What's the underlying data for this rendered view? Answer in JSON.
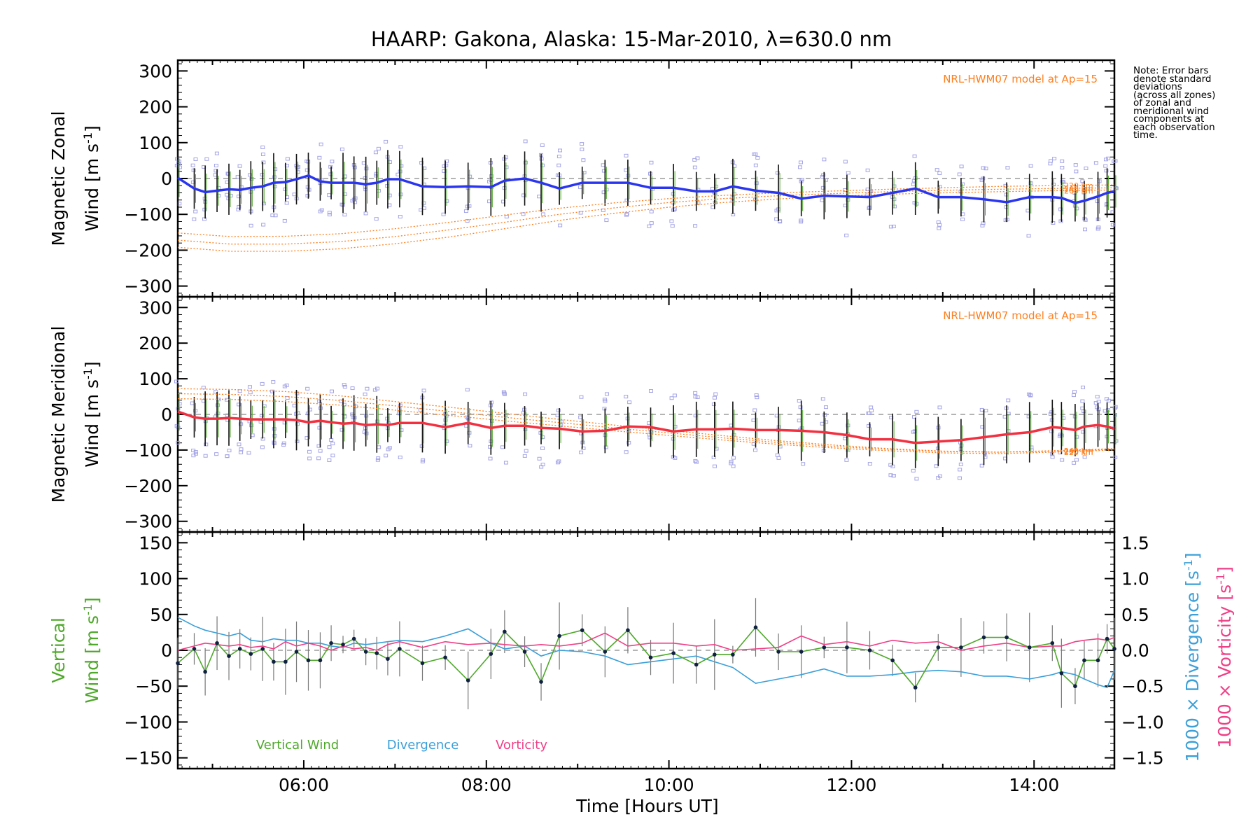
{
  "title": "HAARP: Gakona,  Alaska: 15-Mar-2010, λ=630.0 nm",
  "note_lines": [
    "Note: Error bars",
    "denote standard",
    "deviations",
    "(across all zones)",
    "of zonal and",
    "meridional wind",
    "components at",
    "each observation",
    "time."
  ],
  "xaxis": {
    "label": "Time [Hours UT]",
    "ticks": [
      6,
      8,
      10,
      12,
      14
    ],
    "tick_labels": [
      "06:00",
      "08:00",
      "10:00",
      "12:00",
      "14:00"
    ],
    "range": [
      4.62,
      14.88
    ]
  },
  "colors": {
    "zonal": "#2a35f0",
    "meridional": "#f23040",
    "model": "#ff7f1e",
    "vertical": "#4ea82a",
    "divergence": "#3b9fd8",
    "vorticity": "#ef3f86",
    "scatter": "#a4a4e6",
    "errorbar": "#101010",
    "zero_line": "#888888"
  },
  "chart_data": [
    {
      "type": "line",
      "panel": "zonal",
      "ylabel_line1": "Magnetic Zonal",
      "ylabel_line2": "Wind [m s",
      "ylabel_sup": "-1",
      "ylabel_end": "]",
      "ylim": [
        -330,
        330
      ],
      "yticks": [
        -300,
        -200,
        -100,
        0,
        100,
        200,
        300
      ],
      "ytick_labels": [
        "−300",
        "−200",
        "−100",
        "0",
        "100",
        "200",
        "300"
      ],
      "model_label": "NRL-HWM07 model at Ap=15",
      "model_altitudes": [
        "260 km",
        "240 km",
        "220 km"
      ],
      "series": [
        {
          "role": "zonal",
          "x": [
            4.62,
            4.8,
            4.92,
            5.05,
            5.18,
            5.3,
            5.42,
            5.55,
            5.67,
            5.8,
            5.92,
            6.05,
            6.18,
            6.3,
            6.43,
            6.55,
            6.68,
            6.8,
            6.92,
            7.05,
            7.3,
            7.55,
            7.8,
            8.05,
            8.2,
            8.42,
            8.6,
            8.8,
            9.05,
            9.3,
            9.55,
            9.8,
            10.05,
            10.3,
            10.5,
            10.7,
            10.95,
            11.2,
            11.45,
            11.7,
            11.95,
            12.2,
            12.45,
            12.7,
            12.95,
            13.2,
            13.45,
            13.7,
            13.95,
            14.2,
            14.3,
            14.45,
            14.55,
            14.7,
            14.8,
            14.88
          ],
          "y": [
            2,
            -28,
            -38,
            -34,
            -30,
            -32,
            -26,
            -22,
            -12,
            -10,
            -2,
            8,
            -8,
            -12,
            -12,
            -12,
            -16,
            -12,
            -2,
            -2,
            -22,
            -24,
            -22,
            -24,
            -6,
            0,
            -12,
            -28,
            -12,
            -12,
            -12,
            -26,
            -26,
            -36,
            -36,
            -22,
            -34,
            -40,
            -56,
            -48,
            -50,
            -52,
            -40,
            -28,
            -52,
            -52,
            -58,
            -66,
            -52,
            -52,
            -54,
            -68,
            -62,
            -50,
            -40,
            -36
          ]
        },
        {
          "role": "model",
          "x": [
            4.62,
            5.2,
            5.8,
            6.4,
            7.0,
            7.6,
            8.2,
            8.8,
            9.4,
            10.0,
            10.6,
            11.2,
            11.8,
            12.4,
            13.0,
            13.6,
            14.2,
            14.88
          ],
          "y": [
            -192,
            -203,
            -203,
            -196,
            -182,
            -163,
            -140,
            -117,
            -97,
            -80,
            -67,
            -57,
            -50,
            -44,
            -40,
            -37,
            -34,
            -32
          ]
        },
        {
          "role": "model",
          "x": [
            4.62,
            5.2,
            5.8,
            6.4,
            7.0,
            7.6,
            8.2,
            8.8,
            9.4,
            10.0,
            10.6,
            11.2,
            11.8,
            12.4,
            13.0,
            13.6,
            14.2,
            14.88
          ],
          "y": [
            -172,
            -183,
            -183,
            -176,
            -162,
            -143,
            -122,
            -100,
            -82,
            -67,
            -56,
            -48,
            -42,
            -37,
            -33,
            -30,
            -28,
            -26
          ]
        },
        {
          "role": "model",
          "x": [
            4.62,
            5.2,
            5.8,
            6.4,
            7.0,
            7.6,
            8.2,
            8.8,
            9.4,
            10.0,
            10.6,
            11.2,
            11.8,
            12.4,
            13.0,
            13.6,
            14.2,
            14.88
          ],
          "y": [
            -152,
            -162,
            -161,
            -154,
            -140,
            -122,
            -102,
            -83,
            -68,
            -56,
            -47,
            -40,
            -35,
            -30,
            -26,
            -22,
            -20,
            -18
          ]
        }
      ]
    },
    {
      "type": "line",
      "panel": "meridional",
      "ylabel_line1": "Magnetic Meridional",
      "ylabel_line2": "Wind [m s",
      "ylabel_sup": "-1",
      "ylabel_end": "]",
      "ylim": [
        -330,
        330
      ],
      "yticks": [
        -300,
        -200,
        -100,
        0,
        100,
        200,
        300
      ],
      "ytick_labels": [
        "−300",
        "−200",
        "−100",
        "0",
        "100",
        "200",
        "300"
      ],
      "model_label": "NRL-HWM07 model at Ap=15",
      "model_altitudes": [
        "260 km",
        "240 km",
        "220 km"
      ],
      "series": [
        {
          "role": "meridional",
          "x": [
            4.62,
            4.8,
            4.92,
            5.05,
            5.18,
            5.3,
            5.42,
            5.55,
            5.67,
            5.8,
            5.92,
            6.05,
            6.18,
            6.3,
            6.43,
            6.55,
            6.68,
            6.8,
            6.92,
            7.05,
            7.3,
            7.55,
            7.8,
            8.05,
            8.2,
            8.42,
            8.6,
            8.8,
            9.05,
            9.3,
            9.55,
            9.8,
            10.05,
            10.3,
            10.5,
            10.7,
            10.95,
            11.2,
            11.45,
            11.7,
            11.95,
            12.2,
            12.45,
            12.7,
            12.95,
            13.2,
            13.45,
            13.7,
            13.95,
            14.2,
            14.3,
            14.45,
            14.55,
            14.7,
            14.8,
            14.88
          ],
          "y": [
            8,
            -8,
            -12,
            -12,
            -10,
            -12,
            -14,
            -14,
            -14,
            -14,
            -16,
            -22,
            -18,
            -22,
            -26,
            -24,
            -30,
            -28,
            -30,
            -24,
            -24,
            -36,
            -24,
            -38,
            -32,
            -32,
            -38,
            -40,
            -48,
            -46,
            -34,
            -36,
            -48,
            -42,
            -42,
            -40,
            -44,
            -44,
            -46,
            -50,
            -58,
            -70,
            -70,
            -80,
            -76,
            -72,
            -64,
            -56,
            -50,
            -36,
            -38,
            -44,
            -34,
            -30,
            -34,
            -40
          ]
        },
        {
          "role": "model",
          "x": [
            4.62,
            5.2,
            5.8,
            6.4,
            7.0,
            7.6,
            8.2,
            8.8,
            9.4,
            10.0,
            10.6,
            11.2,
            11.8,
            12.4,
            13.0,
            13.6,
            14.2,
            14.88
          ],
          "y": [
            72,
            70,
            64,
            52,
            36,
            20,
            3,
            -14,
            -30,
            -45,
            -60,
            -74,
            -86,
            -96,
            -103,
            -106,
            -103,
            -98
          ]
        },
        {
          "role": "model",
          "x": [
            4.62,
            5.2,
            5.8,
            6.4,
            7.0,
            7.6,
            8.2,
            8.8,
            9.4,
            10.0,
            10.6,
            11.2,
            11.8,
            12.4,
            13.0,
            13.6,
            14.2,
            14.88
          ],
          "y": [
            58,
            56,
            50,
            39,
            24,
            8,
            -8,
            -23,
            -38,
            -52,
            -66,
            -79,
            -90,
            -98,
            -104,
            -106,
            -102,
            -96
          ]
        },
        {
          "role": "model",
          "x": [
            4.62,
            5.2,
            5.8,
            6.4,
            7.0,
            7.6,
            8.2,
            8.8,
            9.4,
            10.0,
            10.6,
            11.2,
            11.8,
            12.4,
            13.0,
            13.6,
            14.2,
            14.88
          ],
          "y": [
            44,
            42,
            36,
            26,
            12,
            -3,
            -18,
            -32,
            -46,
            -59,
            -72,
            -84,
            -94,
            -102,
            -108,
            -110,
            -106,
            -100
          ]
        }
      ]
    },
    {
      "type": "line",
      "panel": "vertical",
      "ylabel_line1": "Vertical",
      "ylabel_line2": "Wind [m s",
      "ylabel_sup": "-1",
      "ylabel_end": "]",
      "ylim": [
        -165,
        165
      ],
      "yticks": [
        -150,
        -100,
        -50,
        0,
        50,
        100,
        150
      ],
      "ytick_labels": [
        "−150",
        "−100",
        "−50",
        "0",
        "50",
        "100",
        "150"
      ],
      "y2lim": [
        -1.65,
        1.65
      ],
      "y2ticks": [
        -1.5,
        -1.0,
        -0.5,
        0.0,
        0.5,
        1.0,
        1.5
      ],
      "y2tick_labels": [
        "−1.5",
        "−1.0",
        "−0.5",
        "0.0",
        "0.5",
        "1.0",
        "1.5"
      ],
      "y2label_div": "1000 × Divergence [s",
      "y2label_vor": "1000 × Vorticity [s",
      "y2label_sup": "-1",
      "y2label_end": "]",
      "legend": [
        "Vertical Wind",
        "Divergence",
        "Vorticity"
      ],
      "series": [
        {
          "name": "Vertical Wind",
          "x": [
            4.62,
            4.8,
            4.92,
            5.05,
            5.18,
            5.3,
            5.42,
            5.55,
            5.67,
            5.8,
            5.92,
            6.05,
            6.18,
            6.3,
            6.43,
            6.55,
            6.68,
            6.8,
            6.92,
            7.05,
            7.3,
            7.55,
            7.8,
            8.05,
            8.2,
            8.42,
            8.6,
            8.8,
            9.05,
            9.3,
            9.55,
            9.8,
            10.05,
            10.3,
            10.5,
            10.7,
            10.95,
            11.2,
            11.45,
            11.7,
            11.95,
            12.2,
            12.45,
            12.7,
            12.95,
            13.2,
            13.45,
            13.7,
            13.95,
            14.2,
            14.3,
            14.45,
            14.55,
            14.7,
            14.8,
            14.88
          ],
          "y": [
            -18,
            2,
            -30,
            10,
            -8,
            2,
            -5,
            2,
            -16,
            -16,
            -2,
            -14,
            -14,
            10,
            8,
            16,
            -2,
            -4,
            -12,
            2,
            -18,
            -10,
            -42,
            -5,
            26,
            -2,
            -44,
            20,
            28,
            -2,
            28,
            -10,
            -4,
            -20,
            -6,
            -6,
            32,
            -2,
            -2,
            4,
            4,
            0,
            -14,
            -52,
            4,
            4,
            18,
            18,
            4,
            10,
            -32,
            -50,
            -14,
            -14,
            16,
            2
          ]
        },
        {
          "name": "Divergence",
          "x": [
            4.62,
            4.8,
            4.92,
            5.05,
            5.18,
            5.3,
            5.42,
            5.55,
            5.67,
            5.8,
            5.92,
            6.05,
            6.18,
            6.3,
            6.43,
            6.55,
            6.68,
            6.8,
            6.92,
            7.05,
            7.3,
            7.55,
            7.8,
            8.05,
            8.2,
            8.42,
            8.6,
            8.8,
            9.05,
            9.3,
            9.55,
            9.8,
            10.05,
            10.3,
            10.5,
            10.7,
            10.95,
            11.2,
            11.45,
            11.7,
            11.95,
            12.2,
            12.45,
            12.7,
            12.95,
            13.2,
            13.45,
            13.7,
            13.95,
            14.2,
            14.3,
            14.45,
            14.55,
            14.7,
            14.8,
            14.88
          ],
          "y": [
            0.46,
            0.34,
            0.28,
            0.24,
            0.2,
            0.24,
            0.14,
            0.12,
            0.16,
            0.14,
            0.14,
            0.1,
            0.1,
            0.06,
            0.04,
            0.1,
            0.08,
            0.1,
            0.12,
            0.14,
            0.12,
            0.2,
            0.3,
            0.1,
            0.02,
            0.06,
            -0.08,
            0.0,
            -0.02,
            -0.08,
            -0.2,
            -0.16,
            -0.12,
            -0.08,
            -0.16,
            -0.24,
            -0.46,
            -0.4,
            -0.34,
            -0.26,
            -0.36,
            -0.36,
            -0.34,
            -0.3,
            -0.28,
            -0.3,
            -0.36,
            -0.36,
            -0.4,
            -0.34,
            -0.3,
            -0.34,
            -0.4,
            -0.48,
            -0.52,
            -0.28
          ]
        },
        {
          "name": "Vorticity",
          "x": [
            4.62,
            4.8,
            4.92,
            5.05,
            5.18,
            5.3,
            5.42,
            5.55,
            5.67,
            5.8,
            5.92,
            6.05,
            6.18,
            6.3,
            6.43,
            6.55,
            6.68,
            6.8,
            6.92,
            7.05,
            7.3,
            7.55,
            7.8,
            8.05,
            8.2,
            8.42,
            8.6,
            8.8,
            9.05,
            9.3,
            9.55,
            9.8,
            10.05,
            10.3,
            10.5,
            10.7,
            10.95,
            11.2,
            11.45,
            11.7,
            11.95,
            12.2,
            12.45,
            12.7,
            12.95,
            13.2,
            13.45,
            13.7,
            13.95,
            14.2,
            14.3,
            14.45,
            14.55,
            14.7,
            14.8,
            14.88
          ],
          "y": [
            0.0,
            0.06,
            0.1,
            0.08,
            0.06,
            0.08,
            0.04,
            0.06,
            0.02,
            0.12,
            0.06,
            0.1,
            0.06,
            0.0,
            0.06,
            0.02,
            0.04,
            0.0,
            0.08,
            0.12,
            0.04,
            0.12,
            0.08,
            0.1,
            0.08,
            0.06,
            0.08,
            0.06,
            0.1,
            0.24,
            0.06,
            0.1,
            0.1,
            0.06,
            0.08,
            0.0,
            0.02,
            0.04,
            0.2,
            0.08,
            0.12,
            0.06,
            0.14,
            0.1,
            0.12,
            0.0,
            0.06,
            0.1,
            0.04,
            0.06,
            0.06,
            0.12,
            0.14,
            0.16,
            0.14,
            0.18
          ]
        }
      ]
    }
  ]
}
